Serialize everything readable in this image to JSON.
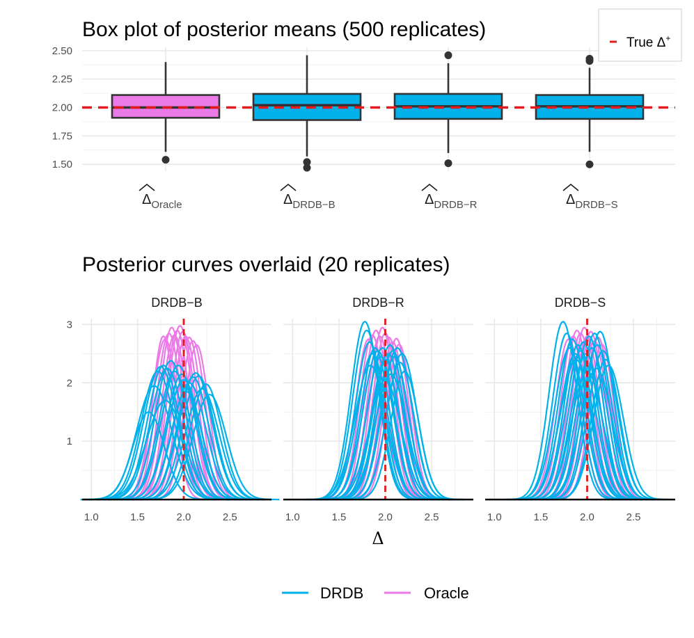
{
  "chart_data": [
    {
      "type": "box",
      "title": "Box plot of posterior means (500 replicates)",
      "xlabel": "",
      "ylabel": "",
      "ylim": [
        1.44,
        2.53
      ],
      "yticks": [
        "2.50",
        "2.25",
        "2.00",
        "1.75",
        "1.50"
      ],
      "reference_line": {
        "value": 2.0,
        "label": "True Δ",
        "label_sup": "+",
        "color": "#e41a1c"
      },
      "categories": [
        {
          "symbol": "Δ",
          "sub": "Oracle",
          "fill": "#e97ae6",
          "q1": 1.91,
          "median": 2.0,
          "q3": 2.11,
          "whisker_low": 1.61,
          "whisker_high": 2.4,
          "outliers": [
            1.54
          ]
        },
        {
          "symbol": "Δ",
          "sub": "DRDB−B",
          "fill": "#02b1ea",
          "q1": 1.89,
          "median": 2.02,
          "q3": 2.12,
          "whisker_low": 1.57,
          "whisker_high": 2.46,
          "outliers": [
            1.52,
            1.47
          ]
        },
        {
          "symbol": "Δ",
          "sub": "DRDB−R",
          "fill": "#02b1ea",
          "q1": 1.9,
          "median": 2.01,
          "q3": 2.12,
          "whisker_low": 1.6,
          "whisker_high": 2.39,
          "outliers": [
            2.46,
            1.51
          ]
        },
        {
          "symbol": "Δ",
          "sub": "DRDB−S",
          "fill": "#02b1ea",
          "q1": 1.9,
          "median": 2.01,
          "q3": 2.11,
          "whisker_low": 1.61,
          "whisker_high": 2.35,
          "outliers": [
            2.43,
            2.41,
            1.5
          ]
        }
      ]
    },
    {
      "type": "line",
      "title": "Posterior curves overlaid (20 replicates)",
      "xlabel": "Δ",
      "ylabel": "",
      "xlim": [
        0.9,
        2.95
      ],
      "ylim": [
        0,
        3.1
      ],
      "xticks": [
        1.0,
        1.5,
        2.0,
        2.5
      ],
      "xtick_labels": [
        "1.0",
        "1.5",
        "2.0",
        "2.5"
      ],
      "yticks": [
        1,
        2,
        3
      ],
      "ytick_labels": [
        "1",
        "2",
        "3"
      ],
      "reference_x": 2.0,
      "panels": [
        "DRDB−B",
        "DRDB−R",
        "DRDB−S"
      ],
      "curves": {
        "DRDB−B": {
          "DRDB": [
            {
              "mean": 1.62,
              "sd": 0.17,
              "peak": 1.5
            },
            {
              "mean": 1.68,
              "sd": 0.19,
              "peak": 1.95
            },
            {
              "mean": 1.72,
              "sd": 0.18,
              "peak": 2.2
            },
            {
              "mean": 1.75,
              "sd": 0.18,
              "peak": 2.28
            },
            {
              "mean": 1.78,
              "sd": 0.17,
              "peak": 2.3
            },
            {
              "mean": 1.82,
              "sd": 0.18,
              "peak": 2.25
            },
            {
              "mean": 1.86,
              "sd": 0.17,
              "peak": 2.38
            },
            {
              "mean": 1.9,
              "sd": 0.17,
              "peak": 2.2
            },
            {
              "mean": 1.94,
              "sd": 0.18,
              "peak": 2.3
            },
            {
              "mean": 1.98,
              "sd": 0.17,
              "peak": 2.15
            },
            {
              "mean": 2.0,
              "sd": 0.18,
              "peak": 2.05
            },
            {
              "mean": 2.03,
              "sd": 0.17,
              "peak": 1.85
            },
            {
              "mean": 2.06,
              "sd": 0.18,
              "peak": 2.0
            },
            {
              "mean": 2.1,
              "sd": 0.17,
              "peak": 2.1
            },
            {
              "mean": 2.13,
              "sd": 0.18,
              "peak": 2.17
            },
            {
              "mean": 2.16,
              "sd": 0.17,
              "peak": 2.12
            },
            {
              "mean": 2.2,
              "sd": 0.18,
              "peak": 1.9
            },
            {
              "mean": 2.24,
              "sd": 0.17,
              "peak": 1.98
            },
            {
              "mean": 2.28,
              "sd": 0.18,
              "peak": 1.8
            },
            {
              "mean": 1.8,
              "sd": 0.2,
              "peak": 1.7
            }
          ],
          "Oracle": [
            {
              "mean": 1.8,
              "sd": 0.14,
              "peak": 2.75
            },
            {
              "mean": 1.84,
              "sd": 0.135,
              "peak": 2.85
            },
            {
              "mean": 1.87,
              "sd": 0.13,
              "peak": 2.95
            },
            {
              "mean": 1.9,
              "sd": 0.135,
              "peak": 2.82
            },
            {
              "mean": 1.93,
              "sd": 0.13,
              "peak": 2.9
            },
            {
              "mean": 1.96,
              "sd": 0.135,
              "peak": 2.98
            },
            {
              "mean": 1.99,
              "sd": 0.13,
              "peak": 2.88
            },
            {
              "mean": 2.02,
              "sd": 0.135,
              "peak": 2.8
            },
            {
              "mean": 2.06,
              "sd": 0.13,
              "peak": 2.78
            },
            {
              "mean": 2.1,
              "sd": 0.135,
              "peak": 2.72
            },
            {
              "mean": 2.14,
              "sd": 0.13,
              "peak": 2.65
            },
            {
              "mean": 1.78,
              "sd": 0.12,
              "peak": 2.8
            }
          ]
        },
        "DRDB−R": {
          "DRDB": [
            {
              "mean": 1.78,
              "sd": 0.15,
              "peak": 3.05
            },
            {
              "mean": 1.8,
              "sd": 0.15,
              "peak": 2.9
            },
            {
              "mean": 1.83,
              "sd": 0.15,
              "peak": 2.7
            },
            {
              "mean": 1.86,
              "sd": 0.16,
              "peak": 2.5
            },
            {
              "mean": 1.89,
              "sd": 0.15,
              "peak": 2.6
            },
            {
              "mean": 1.92,
              "sd": 0.16,
              "peak": 2.55
            },
            {
              "mean": 1.95,
              "sd": 0.15,
              "peak": 2.45
            },
            {
              "mean": 1.97,
              "sd": 0.16,
              "peak": 2.6
            },
            {
              "mean": 2.0,
              "sd": 0.15,
              "peak": 2.4
            },
            {
              "mean": 2.03,
              "sd": 0.16,
              "peak": 2.5
            },
            {
              "mean": 2.05,
              "sd": 0.15,
              "peak": 2.65
            },
            {
              "mean": 2.08,
              "sd": 0.16,
              "peak": 2.55
            },
            {
              "mean": 2.1,
              "sd": 0.15,
              "peak": 2.45
            },
            {
              "mean": 2.13,
              "sd": 0.16,
              "peak": 2.6
            },
            {
              "mean": 2.16,
              "sd": 0.15,
              "peak": 2.35
            },
            {
              "mean": 2.18,
              "sd": 0.16,
              "peak": 2.5
            },
            {
              "mean": 2.21,
              "sd": 0.15,
              "peak": 2.2
            },
            {
              "mean": 1.84,
              "sd": 0.17,
              "peak": 2.3
            },
            {
              "mean": 2.0,
              "sd": 0.17,
              "peak": 2.05
            },
            {
              "mean": 2.06,
              "sd": 0.17,
              "peak": 2.15
            }
          ],
          "Oracle": [
            {
              "mean": 1.82,
              "sd": 0.14,
              "peak": 2.75
            },
            {
              "mean": 1.86,
              "sd": 0.135,
              "peak": 2.82
            },
            {
              "mean": 1.9,
              "sd": 0.13,
              "peak": 2.9
            },
            {
              "mean": 1.94,
              "sd": 0.135,
              "peak": 2.8
            },
            {
              "mean": 1.97,
              "sd": 0.13,
              "peak": 2.95
            },
            {
              "mean": 2.0,
              "sd": 0.135,
              "peak": 2.85
            },
            {
              "mean": 2.04,
              "sd": 0.13,
              "peak": 2.78
            },
            {
              "mean": 2.08,
              "sd": 0.135,
              "peak": 2.7
            },
            {
              "mean": 2.12,
              "sd": 0.13,
              "peak": 2.76
            },
            {
              "mean": 2.15,
              "sd": 0.13,
              "peak": 2.66
            }
          ]
        },
        "DRDB−S": {
          "DRDB": [
            {
              "mean": 1.74,
              "sd": 0.15,
              "peak": 3.05
            },
            {
              "mean": 1.78,
              "sd": 0.15,
              "peak": 2.85
            },
            {
              "mean": 1.81,
              "sd": 0.16,
              "peak": 2.6
            },
            {
              "mean": 1.84,
              "sd": 0.15,
              "peak": 2.75
            },
            {
              "mean": 1.87,
              "sd": 0.16,
              "peak": 2.5
            },
            {
              "mean": 1.9,
              "sd": 0.15,
              "peak": 2.65
            },
            {
              "mean": 1.93,
              "sd": 0.16,
              "peak": 2.55
            },
            {
              "mean": 1.96,
              "sd": 0.15,
              "peak": 2.7
            },
            {
              "mean": 1.99,
              "sd": 0.16,
              "peak": 2.5
            },
            {
              "mean": 2.02,
              "sd": 0.15,
              "peak": 2.8
            },
            {
              "mean": 2.05,
              "sd": 0.16,
              "peak": 2.6
            },
            {
              "mean": 2.08,
              "sd": 0.15,
              "peak": 2.85
            },
            {
              "mean": 2.11,
              "sd": 0.16,
              "peak": 2.65
            },
            {
              "mean": 2.14,
              "sd": 0.15,
              "peak": 2.88
            },
            {
              "mean": 2.17,
              "sd": 0.16,
              "peak": 2.55
            },
            {
              "mean": 2.2,
              "sd": 0.15,
              "peak": 2.4
            },
            {
              "mean": 2.23,
              "sd": 0.16,
              "peak": 2.3
            },
            {
              "mean": 1.88,
              "sd": 0.17,
              "peak": 2.4
            },
            {
              "mean": 2.0,
              "sd": 0.17,
              "peak": 2.2
            },
            {
              "mean": 2.1,
              "sd": 0.17,
              "peak": 2.25
            }
          ],
          "Oracle": [
            {
              "mean": 1.8,
              "sd": 0.14,
              "peak": 2.75
            },
            {
              "mean": 1.85,
              "sd": 0.135,
              "peak": 2.8
            },
            {
              "mean": 1.89,
              "sd": 0.13,
              "peak": 2.9
            },
            {
              "mean": 1.93,
              "sd": 0.135,
              "peak": 2.85
            },
            {
              "mean": 1.97,
              "sd": 0.13,
              "peak": 2.95
            },
            {
              "mean": 2.0,
              "sd": 0.135,
              "peak": 2.8
            },
            {
              "mean": 2.04,
              "sd": 0.13,
              "peak": 2.88
            },
            {
              "mean": 2.08,
              "sd": 0.135,
              "peak": 2.72
            },
            {
              "mean": 2.12,
              "sd": 0.13,
              "peak": 2.78
            },
            {
              "mean": 2.16,
              "sd": 0.13,
              "peak": 2.66
            }
          ]
        }
      },
      "colors": {
        "DRDB": "#02b1ea",
        "Oracle": "#e97ae6",
        "reference": "#e41a1c"
      }
    }
  ],
  "legend": {
    "top": {
      "label": "True Δ",
      "sup": "+"
    },
    "bottom": [
      {
        "label": "DRDB",
        "color": "#02b1ea"
      },
      {
        "label": "Oracle",
        "color": "#e97ae6"
      }
    ]
  }
}
